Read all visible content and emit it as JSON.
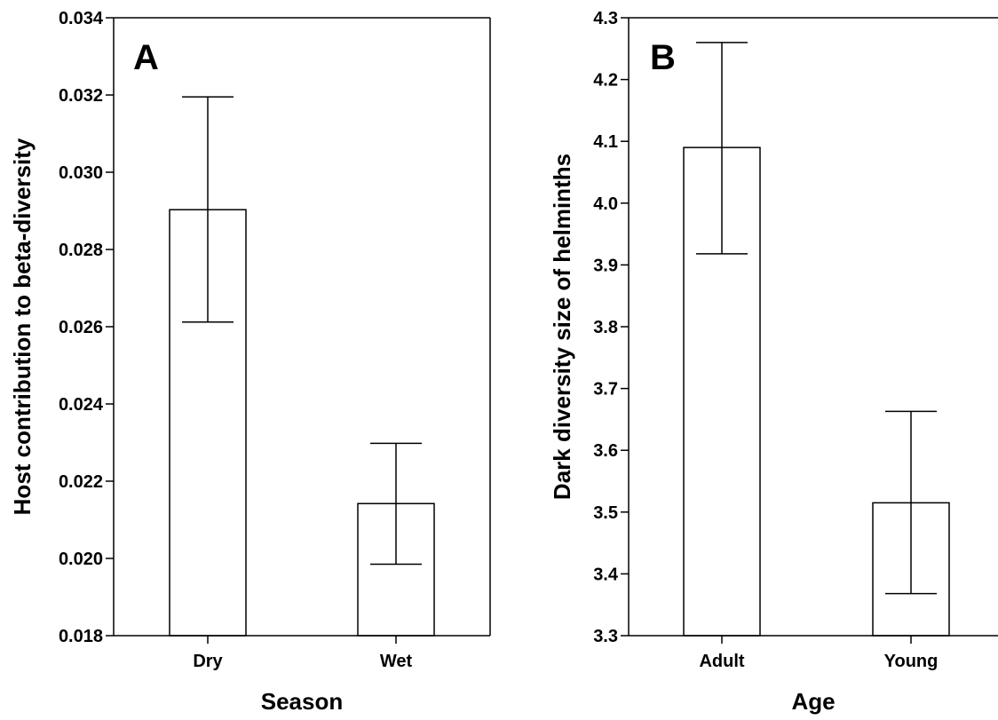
{
  "chart_data": [
    {
      "type": "bar",
      "panel_label": "A",
      "xlabel": "Season",
      "ylabel": "Host contribution to beta-diversity",
      "categories": [
        "Dry",
        "Wet"
      ],
      "values": [
        0.02903,
        0.02142
      ],
      "error_lower": [
        0.02612,
        0.01985
      ],
      "error_upper": [
        0.03195,
        0.02298
      ],
      "ylim": [
        0.018,
        0.034
      ],
      "yticks": [
        0.018,
        0.02,
        0.022,
        0.024,
        0.026,
        0.028,
        0.03,
        0.032,
        0.034
      ],
      "ytick_labels": [
        "0.018",
        "0.020",
        "0.022",
        "0.024",
        "0.026",
        "0.028",
        "0.030",
        "0.032",
        "0.034"
      ],
      "bar_color": "#ffffff",
      "grid": false
    },
    {
      "type": "bar",
      "panel_label": "B",
      "xlabel": "Age",
      "ylabel": "Dark diversity size of helminths",
      "categories": [
        "Adult",
        "Young"
      ],
      "values": [
        4.09,
        3.515
      ],
      "error_lower": [
        3.918,
        3.368
      ],
      "error_upper": [
        4.26,
        3.663
      ],
      "ylim": [
        3.3,
        4.3
      ],
      "yticks": [
        3.3,
        3.4,
        3.5,
        3.6,
        3.7,
        3.8,
        3.9,
        4.0,
        4.1,
        4.2,
        4.3
      ],
      "ytick_labels": [
        "3.3",
        "3.4",
        "3.5",
        "3.6",
        "3.7",
        "3.8",
        "3.9",
        "4.0",
        "4.1",
        "4.2",
        "4.3"
      ],
      "bar_color": "#ffffff",
      "grid": false
    }
  ]
}
